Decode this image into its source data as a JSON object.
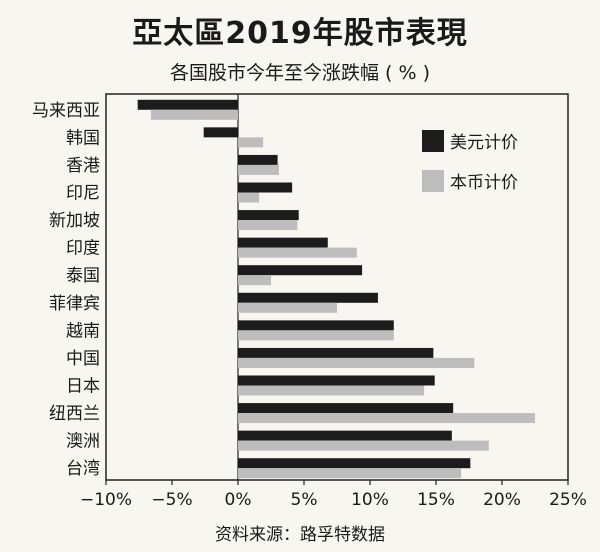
{
  "title": "亞太區2019年股市表現",
  "subtitle": "各国股市今年至今涨跌幅 ( % )",
  "source": "资料来源：路孚特数据",
  "colors": {
    "usd": "#1c1c1c",
    "local": "#bdbdbd",
    "axis": "#222222",
    "background": "#f7f6f1"
  },
  "chart_data": {
    "type": "bar",
    "orientation": "horizontal",
    "categories": [
      "马来西亚",
      "韩国",
      "香港",
      "印尼",
      "新加坡",
      "印度",
      "泰国",
      "菲律宾",
      "越南",
      "中国",
      "日本",
      "纽西兰",
      "澳洲",
      "台湾"
    ],
    "series": [
      {
        "name": "美元计价",
        "color": "#1c1c1c",
        "values": [
          -7.6,
          -2.6,
          3.0,
          4.1,
          4.6,
          6.8,
          9.4,
          10.6,
          11.8,
          14.8,
          14.9,
          16.3,
          16.2,
          17.6
        ]
      },
      {
        "name": "本币计价",
        "color": "#bdbdbd",
        "values": [
          -6.6,
          1.9,
          3.1,
          1.6,
          4.5,
          9.0,
          2.5,
          7.5,
          11.8,
          17.9,
          14.1,
          22.5,
          19.0,
          16.9
        ]
      }
    ],
    "xlim": [
      -10,
      25
    ],
    "xticks": [
      -10,
      -5,
      0,
      5,
      10,
      15,
      20,
      25
    ],
    "xtick_labels": [
      "−10%",
      "−5%",
      "0%",
      "5%",
      "10%",
      "15%",
      "20%",
      "25%"
    ],
    "grid": false,
    "legend_position": "top-right"
  }
}
